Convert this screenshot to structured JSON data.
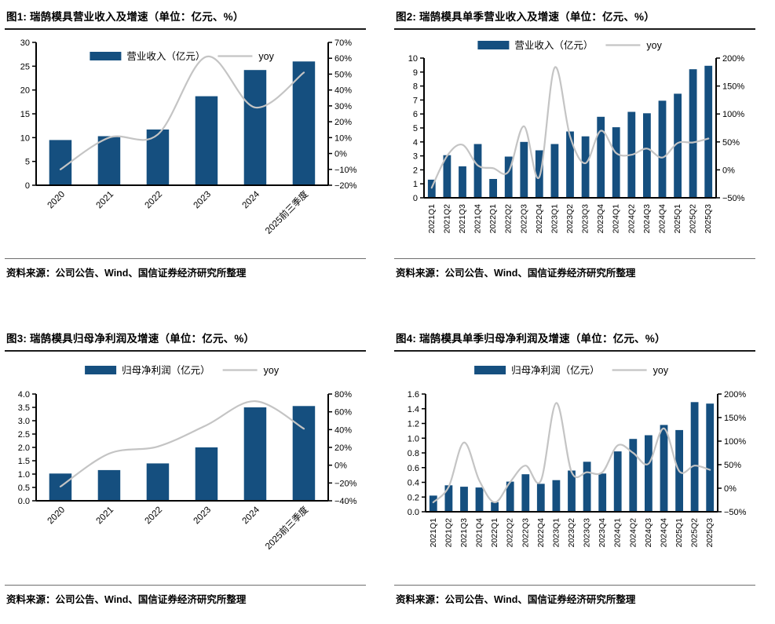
{
  "source_note": "资料来源：公司公告、Wind、国信证券经济研究所整理",
  "colors": {
    "bar": "#154F7F",
    "yoy_line": "#C4C4C4",
    "axis": "#000000",
    "title_rule": "#1a1a1a",
    "footer_rule": "#6e6e6e",
    "background": "#ffffff"
  },
  "chart_data": [
    {
      "id": "fig1",
      "type": "bar+line",
      "title": "图1: 瑞鹄模具营业收入及增速（单位：亿元、%）",
      "categories": [
        "2020",
        "2021",
        "2022",
        "2023",
        "2024",
        "2025前三季度"
      ],
      "series": [
        {
          "name": "营业收入（亿元）",
          "type": "bar",
          "axis": "left",
          "values": [
            9.5,
            10.3,
            11.7,
            18.7,
            24.2,
            26.0
          ]
        },
        {
          "name": "yoy",
          "type": "line",
          "axis": "right",
          "unit": "%",
          "values": [
            -10,
            10,
            12,
            61,
            29,
            51
          ]
        }
      ],
      "left_axis": {
        "min": 0,
        "max": 30,
        "step": 5,
        "decimals": 0
      },
      "right_axis": {
        "min": -20,
        "max": 70,
        "step": 10,
        "suffix": "%"
      },
      "x_tick_rotation": -45,
      "legend_position": "top-center-inside",
      "grid": false,
      "source": "资料来源：公司公告、Wind、国信证券经济研究所整理"
    },
    {
      "id": "fig2",
      "type": "bar+line",
      "title": "图2: 瑞鹄模具单季营业收入及增速（单位：亿元、%）",
      "categories": [
        "2021Q1",
        "2021Q2",
        "2021Q3",
        "2021Q4",
        "2022Q1",
        "2022Q2",
        "2022Q3",
        "2022Q4",
        "2023Q1",
        "2023Q2",
        "2023Q3",
        "2023Q4",
        "2024Q1",
        "2024Q2",
        "2024Q3",
        "2024Q4",
        "2025Q1",
        "2025Q2",
        "2025Q3"
      ],
      "series": [
        {
          "name": "营业收入（亿元）",
          "type": "bar",
          "axis": "left",
          "values": [
            1.3,
            3.05,
            2.25,
            3.85,
            1.35,
            2.95,
            4.0,
            3.4,
            3.85,
            4.75,
            4.4,
            5.8,
            5.05,
            6.15,
            6.05,
            6.95,
            7.45,
            9.2,
            9.45
          ]
        },
        {
          "name": "yoy",
          "type": "line",
          "axis": "right",
          "unit": "%",
          "values": [
            -32,
            25,
            45,
            8,
            3,
            -3,
            78,
            -13,
            183,
            60,
            12,
            70,
            30,
            27,
            38,
            22,
            48,
            49,
            56
          ]
        }
      ],
      "left_axis": {
        "min": 0,
        "max": 10,
        "step": 1,
        "decimals": 0
      },
      "right_axis": {
        "min": -50,
        "max": 200,
        "step": 50,
        "suffix": "%"
      },
      "x_tick_rotation": -90,
      "legend_position": "top-center",
      "grid": false,
      "source": "资料来源：公司公告、Wind、国信证券经济研究所整理"
    },
    {
      "id": "fig3",
      "type": "bar+line",
      "title": "图3: 瑞鹄模具归母净利润及增速（单位：亿元、%）",
      "categories": [
        "2020",
        "2021",
        "2022",
        "2023",
        "2024",
        "2025前三季度"
      ],
      "series": [
        {
          "name": "归母净利润（亿元）",
          "type": "bar",
          "axis": "left",
          "values": [
            1.02,
            1.15,
            1.4,
            2.0,
            3.5,
            3.55
          ]
        },
        {
          "name": "yoy",
          "type": "line",
          "axis": "right",
          "unit": "%",
          "values": [
            -24,
            13,
            21,
            45,
            72,
            41
          ]
        }
      ],
      "left_axis": {
        "min": 0,
        "max": 4,
        "step": 0.5,
        "decimals": 1
      },
      "right_axis": {
        "min": -40,
        "max": 80,
        "step": 20,
        "suffix": "%"
      },
      "x_tick_rotation": -45,
      "legend_position": "top-center",
      "grid": false,
      "source": "资料来源：公司公告、Wind、国信证券经济研究所整理"
    },
    {
      "id": "fig4",
      "type": "bar+line",
      "title": "图4: 瑞鹄模具单季归母净利润及增速（单位：亿元、%）",
      "categories": [
        "2021Q1",
        "2021Q2",
        "2021Q3",
        "2021Q4",
        "2022Q1",
        "2022Q2",
        "2022Q3",
        "2022Q4",
        "2023Q1",
        "2023Q2",
        "2023Q3",
        "2023Q4",
        "2024Q1",
        "2024Q2",
        "2024Q3",
        "2024Q4",
        "2025Q1",
        "2025Q2",
        "2025Q3"
      ],
      "series": [
        {
          "name": "归母净利润（亿元）",
          "type": "bar",
          "axis": "left",
          "values": [
            0.22,
            0.36,
            0.34,
            0.33,
            0.13,
            0.41,
            0.51,
            0.38,
            0.43,
            0.56,
            0.68,
            0.52,
            0.82,
            0.99,
            1.04,
            1.18,
            1.11,
            1.49,
            1.47
          ]
        },
        {
          "name": "yoy",
          "type": "line",
          "axis": "right",
          "unit": "%",
          "values": [
            -30,
            3,
            97,
            16,
            -30,
            13,
            48,
            16,
            181,
            34,
            34,
            34,
            91,
            75,
            52,
            127,
            36,
            48,
            39
          ]
        }
      ],
      "left_axis": {
        "min": 0,
        "max": 1.6,
        "step": 0.2,
        "decimals": 1
      },
      "right_axis": {
        "min": -50,
        "max": 200,
        "step": 50,
        "suffix": "%"
      },
      "x_tick_rotation": -90,
      "legend_position": "top-center",
      "grid": false,
      "source": "资料来源：公司公告、Wind、国信证券经济研究所整理"
    }
  ]
}
